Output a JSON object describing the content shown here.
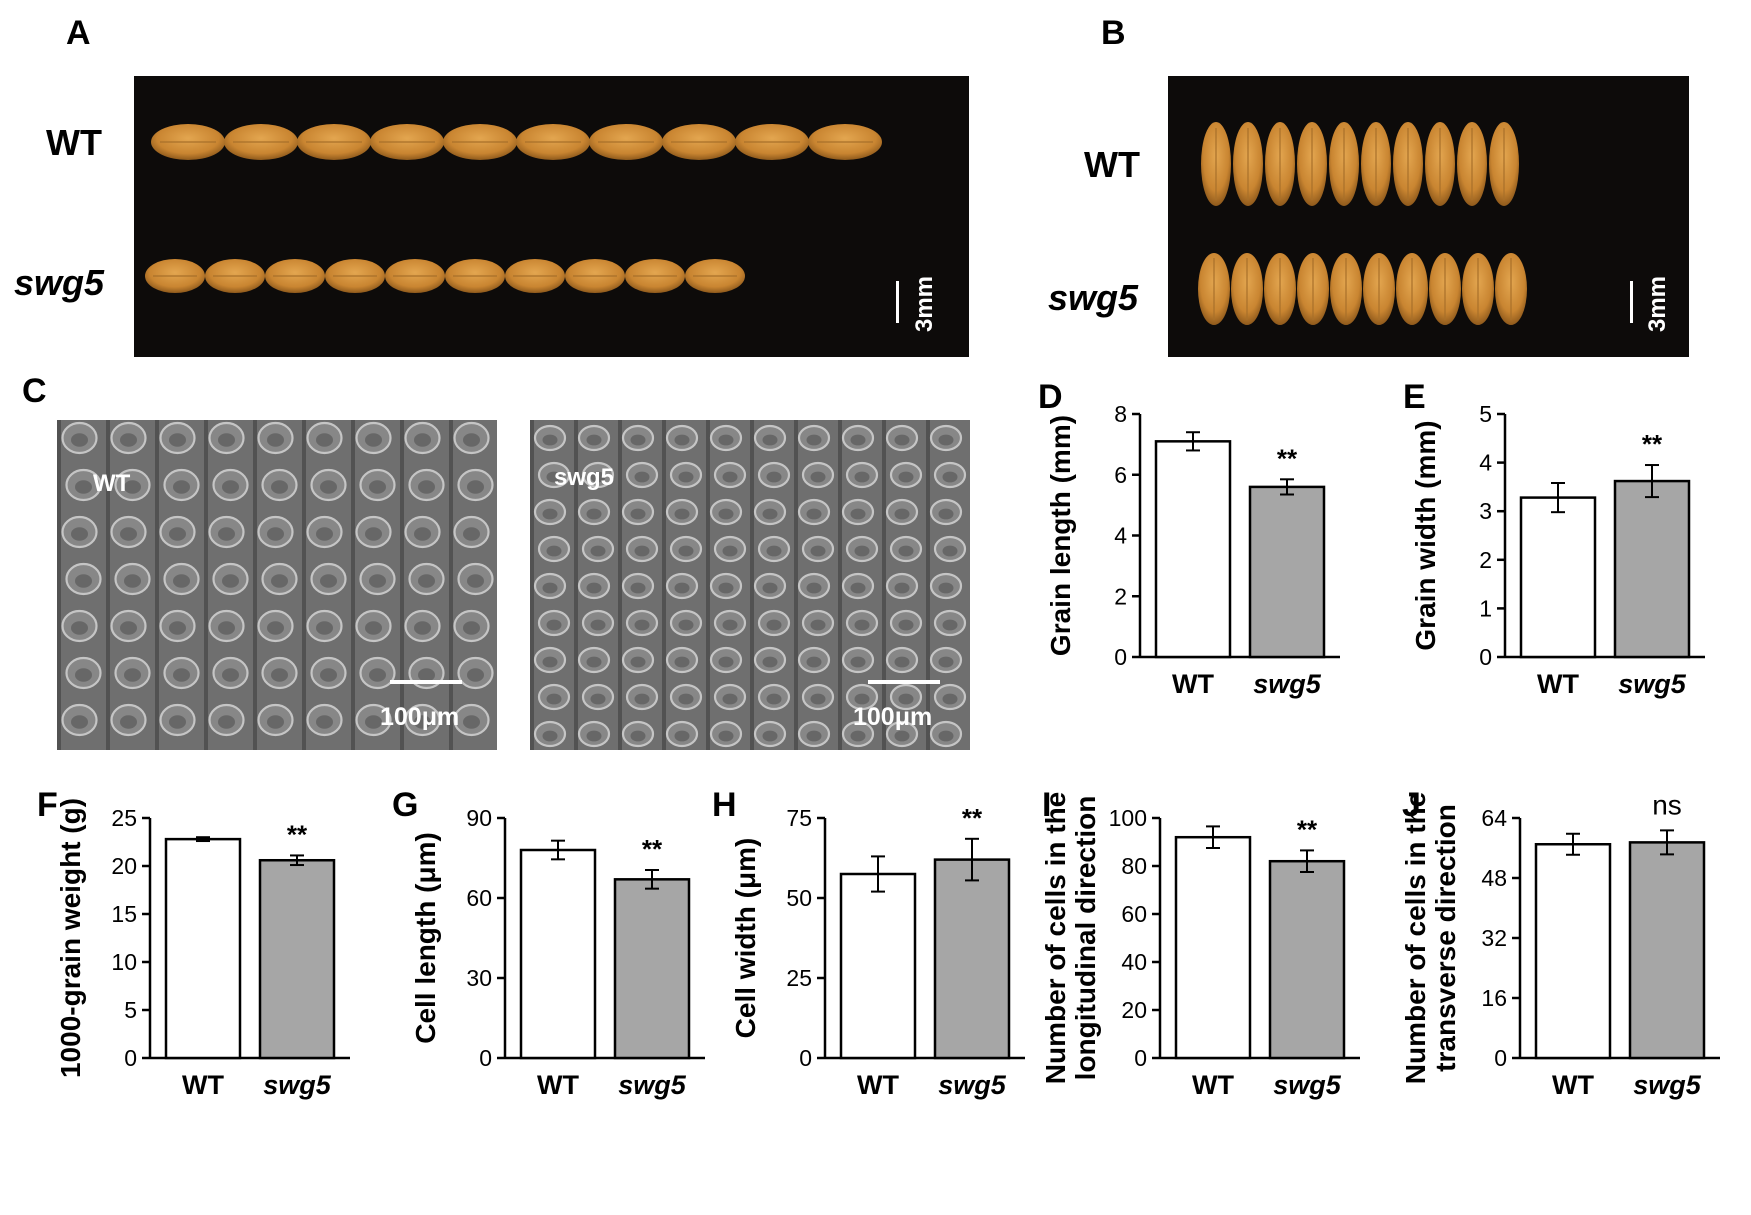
{
  "panels": {
    "A": {
      "letter": "A",
      "wt_label": "WT",
      "mut_label": "swg5",
      "scale_label": "3mm",
      "wt_grain_count": 10,
      "mut_grain_count": 10
    },
    "B": {
      "letter": "B",
      "wt_label": "WT",
      "mut_label": "swg5",
      "scale_label": "3mm",
      "wt_grain_count": 10,
      "mut_grain_count": 10
    },
    "C": {
      "letter": "C",
      "left_label": "WT",
      "right_label": "swg5",
      "left_scale": "100μm",
      "right_scale": "100μm"
    }
  },
  "colors": {
    "wt_bar": "#ffffff",
    "mut_bar": "#a6a6a6",
    "photo_bg": "#0d0b0a",
    "grain": "#d3913a"
  },
  "chart_data": [
    {
      "id": "D",
      "letter": "D",
      "type": "bar",
      "categories": [
        "WT",
        "swg5"
      ],
      "values": [
        7.1,
        5.6
      ],
      "errors": [
        0.3,
        0.25
      ],
      "ylabel": [
        "Grain length (mm)"
      ],
      "ylim": [
        0,
        8
      ],
      "yticks": [
        "0",
        "2",
        "4",
        "6",
        "8"
      ],
      "significance": [
        "",
        "**"
      ]
    },
    {
      "id": "E",
      "letter": "E",
      "type": "bar",
      "categories": [
        "WT",
        "swg5"
      ],
      "values": [
        3.28,
        3.62
      ],
      "errors": [
        0.3,
        0.33
      ],
      "ylabel": [
        "Grain width (mm)"
      ],
      "ylim": [
        0,
        5
      ],
      "yticks": [
        "0",
        "1",
        "2",
        "3",
        "4",
        "5"
      ],
      "significance": [
        "",
        "**"
      ]
    },
    {
      "id": "F",
      "letter": "F",
      "type": "bar",
      "categories": [
        "WT",
        "swg5"
      ],
      "values": [
        22.8,
        20.6
      ],
      "errors": [
        0.2,
        0.5
      ],
      "ylabel": [
        "1000-grain weight (g)"
      ],
      "ylim": [
        0,
        25
      ],
      "yticks": [
        "0",
        "5",
        "10",
        "15",
        "20",
        "25"
      ],
      "significance": [
        "",
        "**"
      ]
    },
    {
      "id": "G",
      "letter": "G",
      "type": "bar",
      "categories": [
        "WT",
        "swg5"
      ],
      "values": [
        78,
        67
      ],
      "errors": [
        3.5,
        3.5
      ],
      "ylabel": [
        "Cell length (μm)"
      ],
      "ylim": [
        0,
        90
      ],
      "yticks": [
        "0",
        "30",
        "60",
        "90"
      ],
      "significance": [
        "",
        "**"
      ]
    },
    {
      "id": "H",
      "letter": "H",
      "type": "bar",
      "categories": [
        "WT",
        "swg5"
      ],
      "values": [
        57.5,
        62
      ],
      "errors": [
        5.5,
        6.5
      ],
      "ylabel": [
        "Cell width (μm)"
      ],
      "ylim": [
        0,
        75
      ],
      "yticks": [
        "0",
        "25",
        "50",
        "75"
      ],
      "significance": [
        "",
        "**"
      ]
    },
    {
      "id": "I",
      "letter": "I",
      "type": "bar",
      "categories": [
        "WT",
        "swg5"
      ],
      "values": [
        92,
        82
      ],
      "errors": [
        4.5,
        4.5
      ],
      "ylabel": [
        "Number of cells in the",
        "longitudinal direction"
      ],
      "ylim": [
        0,
        100
      ],
      "yticks": [
        "0",
        "20",
        "40",
        "60",
        "80",
        "100"
      ],
      "significance": [
        "",
        "**"
      ]
    },
    {
      "id": "J",
      "letter": "J",
      "type": "bar",
      "categories": [
        "WT",
        "swg5"
      ],
      "values": [
        57,
        57.5
      ],
      "errors": [
        2.8,
        3.2
      ],
      "ylabel": [
        "Number of cells in the",
        "transverse direction"
      ],
      "ylim": [
        0,
        64
      ],
      "yticks": [
        "0",
        "16",
        "32",
        "48",
        "64"
      ],
      "significance": [
        "",
        "ns"
      ]
    }
  ]
}
